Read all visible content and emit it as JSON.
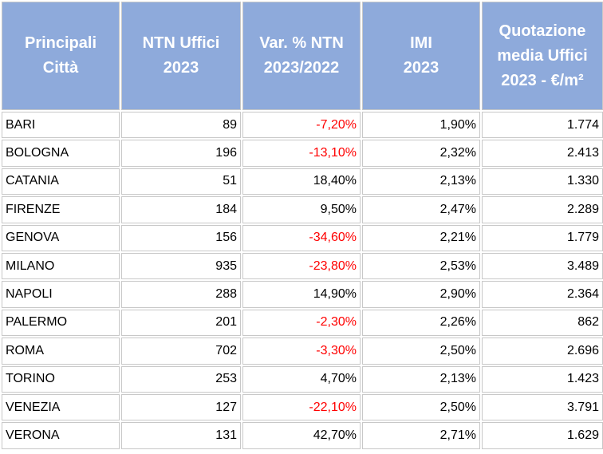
{
  "table": {
    "header": [
      [
        "Principali",
        "Città"
      ],
      [
        "NTN Uffici",
        "2023"
      ],
      [
        "Var. % NTN",
        "2023/2022"
      ],
      [
        "IMI",
        "2023"
      ],
      [
        "Quotazione",
        "media Uffici",
        "2023 - €/m²"
      ]
    ],
    "rows": [
      [
        "BARI",
        "89",
        "-7,20%",
        "1,90%",
        "1.774"
      ],
      [
        "BOLOGNA",
        "196",
        "-13,10%",
        "2,32%",
        "2.413"
      ],
      [
        "CATANIA",
        "51",
        "18,40%",
        "2,13%",
        "1.330"
      ],
      [
        "FIRENZE",
        "184",
        "9,50%",
        "2,47%",
        "2.289"
      ],
      [
        "GENOVA",
        "156",
        "-34,60%",
        "2,21%",
        "1.779"
      ],
      [
        "MILANO",
        "935",
        "-23,80%",
        "2,53%",
        "3.489"
      ],
      [
        "NAPOLI",
        "288",
        "14,90%",
        "2,90%",
        "2.364"
      ],
      [
        "PALERMO",
        "201",
        "-2,30%",
        "2,26%",
        "862"
      ],
      [
        "ROMA",
        "702",
        "-3,30%",
        "2,50%",
        "2.696"
      ],
      [
        "TORINO",
        "253",
        "4,70%",
        "2,13%",
        "1.423"
      ],
      [
        "VENEZIA",
        "127",
        "-22,10%",
        "2,50%",
        "3.791"
      ],
      [
        "VERONA",
        "131",
        "42,70%",
        "2,71%",
        "1.629"
      ]
    ],
    "negative_color": "#ff0000"
  }
}
